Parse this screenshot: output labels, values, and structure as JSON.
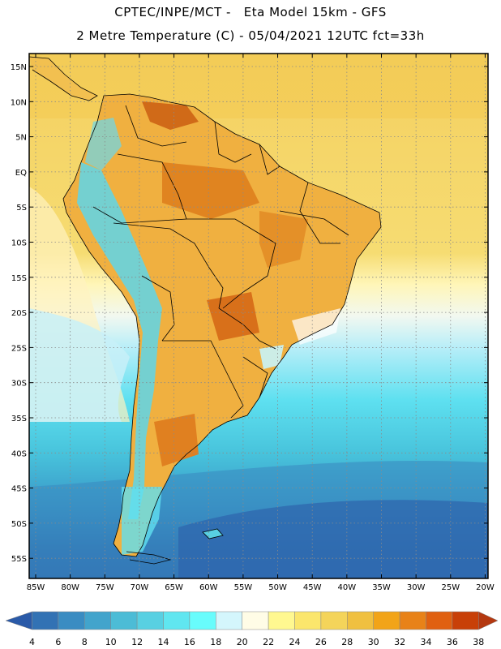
{
  "header": {
    "line1": "CPTEC/INPE/MCT -   Eta Model 15km - GFS",
    "line2": "2 Metre Temperature (C) - 05/04/2021 12UTC fct=33h"
  },
  "axes": {
    "lat_labels": [
      "15N",
      "10N",
      "5N",
      "EQ",
      "5S",
      "10S",
      "15S",
      "20S",
      "25S",
      "30S",
      "35S",
      "40S",
      "45S",
      "50S",
      "55S"
    ],
    "lon_labels": [
      "85W",
      "80W",
      "75W",
      "70W",
      "65W",
      "60W",
      "55W",
      "50W",
      "45W",
      "40W",
      "35W",
      "30W",
      "25W",
      "20W"
    ]
  },
  "colorbar": {
    "labels": [
      "4",
      "6",
      "8",
      "10",
      "12",
      "14",
      "16",
      "18",
      "20",
      "22",
      "24",
      "26",
      "28",
      "30",
      "32",
      "34",
      "36",
      "38"
    ],
    "colors": [
      "#2a5aa8",
      "#3272b4",
      "#3a8cc2",
      "#42a4cc",
      "#4cbcd6",
      "#58d0e2",
      "#60e6f0",
      "#68fcfc",
      "#d4f6fc",
      "#fffce6",
      "#fff890",
      "#fbe66c",
      "#f4d45a",
      "#f0c040",
      "#f2a418",
      "#e88218",
      "#e06010",
      "#c84008",
      "#b43810"
    ]
  },
  "chart_data": {
    "type": "heatmap",
    "variable": "2 Metre Temperature",
    "units": "C",
    "model": "Eta Model 15km - GFS",
    "init_time": "05/04/2021 12UTC",
    "forecast_hour": "33h",
    "lat_range": [
      -57,
      17
    ],
    "lon_range": [
      -86,
      -20
    ],
    "color_levels": [
      4,
      6,
      8,
      10,
      12,
      14,
      16,
      18,
      20,
      22,
      24,
      26,
      28,
      30,
      32,
      34,
      36,
      38
    ]
  }
}
